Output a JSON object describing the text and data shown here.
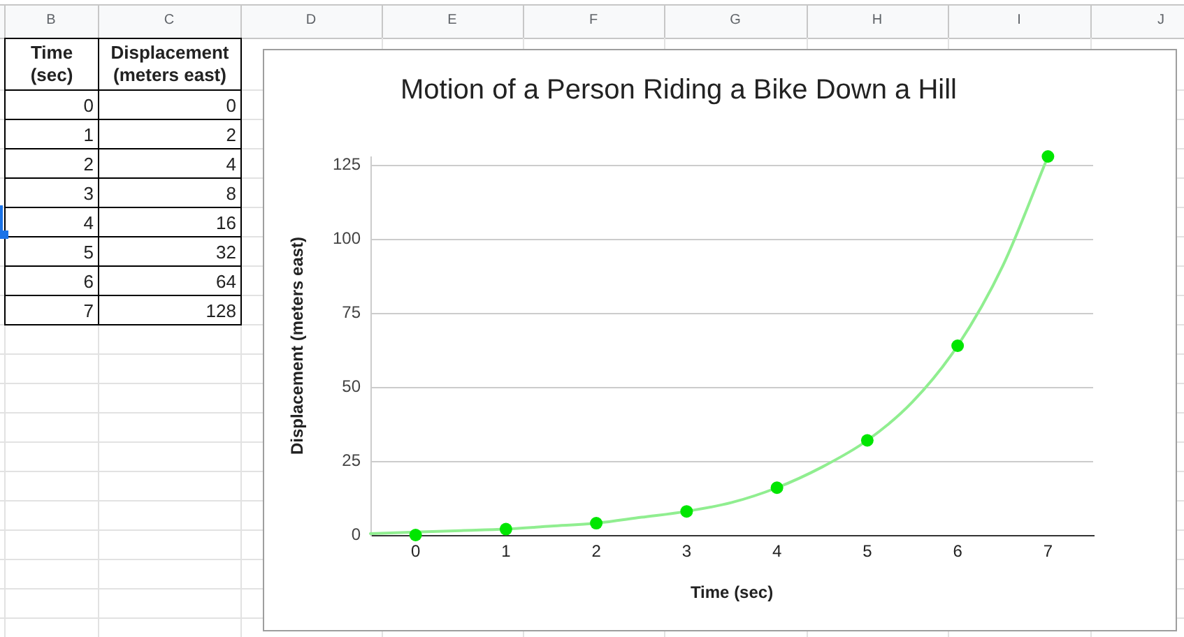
{
  "chart_data": {
    "type": "scatter",
    "title": "Motion of a Person Riding a Bike Down a Hill",
    "xlabel": "Time (sec)",
    "ylabel": "Displacement (meters east)",
    "annotations": [
      "B",
      "C",
      "D",
      "E",
      "F",
      "G",
      "H",
      "I",
      "J",
      "Time (sec)",
      "Displacement (meters east)",
      "0",
      "0",
      "1",
      "2",
      "2",
      "4",
      "3",
      "8",
      "4",
      "16",
      "5",
      "32",
      "6",
      "64",
      "7",
      "128"
    ],
    "series": [
      {
        "type": "scatter",
        "color": "#00e600",
        "x": [
          0,
          1,
          2,
          3,
          4,
          5,
          6,
          7
        ],
        "values": [
          0,
          2,
          4,
          8,
          16,
          32,
          64,
          128
        ]
      },
      {
        "type": "line",
        "color": "#90ee90",
        "marker": "none",
        "x": [
          -0.5,
          0,
          0.5,
          1,
          1.5,
          2,
          2.5,
          3,
          3.5,
          4,
          4.5,
          5,
          5.5,
          6,
          6.5,
          7
        ],
        "values": [
          0.5,
          1,
          1.5,
          2,
          3,
          4,
          6,
          8,
          11,
          16,
          23,
          32,
          45,
          64,
          91,
          128
        ]
      }
    ],
    "xlim": [
      -0.5,
      7.5
    ],
    "xticks": [
      0,
      1,
      2,
      3,
      4,
      5,
      6,
      7
    ],
    "ylim": [
      0,
      128
    ],
    "yticks": [
      0,
      25,
      50,
      75,
      100,
      125
    ],
    "grid": "y",
    "marker": "circle"
  }
}
